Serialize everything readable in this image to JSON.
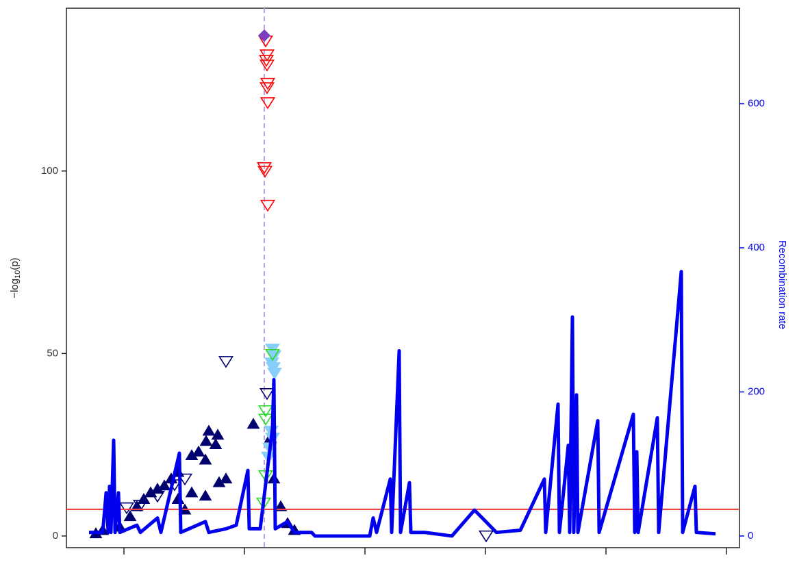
{
  "chart_data": {
    "type": "scatter",
    "y_label": {
      "text": "−log",
      "sub": "10",
      "suffix": "(p)"
    },
    "y2_label": "Recombination rate",
    "xlim": [
      97,
      1080
    ],
    "xticks": [
      181,
      357,
      533,
      709,
      885,
      1061
    ],
    "ylim": [
      -3.2,
      144.6
    ],
    "yticks": [
      0,
      50,
      100
    ],
    "y2lim": [
      -16.2,
      732.6
    ],
    "y2ticks": [
      0,
      200,
      400,
      600
    ],
    "threshold": {
      "value": 7.3,
      "color": "#f04040"
    },
    "lead_line": {
      "x": 386,
      "color": "#b8a2e0"
    },
    "groups": [
      {
        "color": "#00006e",
        "marker": "triangle-up",
        "filled": true,
        "x": [
          305,
          318,
          301,
          315,
          290,
          280,
          300,
          260,
          250,
          240,
          230,
          220,
          210,
          200,
          190,
          175,
          150,
          140,
          320,
          330,
          370,
          395,
          400,
          410,
          420,
          430,
          260,
          280,
          300,
          270
        ],
        "y": [
          28.7,
          27.6,
          25.9,
          25,
          23,
          22,
          20.8,
          17.4,
          15.6,
          13.7,
          12.8,
          11.8,
          10,
          8,
          5.3,
          2.4,
          1.5,
          0.6,
          14.6,
          15.6,
          30.6,
          26.8,
          15.6,
          8,
          3.4,
          1.5,
          10,
          11.8,
          10.9,
          7.1
        ]
      },
      {
        "color": "#00006e",
        "marker": "triangle-down",
        "filled": false,
        "x": [
          330,
          390,
          270,
          255,
          230,
          205,
          185,
          710
        ],
        "y": [
          47.8,
          39,
          15.6,
          14,
          10.9,
          8.4,
          7.7,
          0
        ]
      },
      {
        "color": "#87cefa",
        "marker": "triangle-down",
        "filled": true,
        "x": [
          398,
          400,
          397,
          399,
          401,
          396,
          398,
          394,
          392
        ],
        "y": [
          51.2,
          49.3,
          47.4,
          46.1,
          44.6,
          28.7,
          26.8,
          24,
          21.6
        ]
      },
      {
        "color": "#22dd22",
        "marker": "triangle-down",
        "filled": false,
        "x": [
          398,
          388,
          388,
          388,
          385
        ],
        "y": [
          49.7,
          34.3,
          32,
          16.5,
          9
        ]
      },
      {
        "color": "#ff0000",
        "marker": "triangle-down",
        "filled": false,
        "x": [
          388,
          390,
          389,
          390,
          391,
          390,
          391,
          386,
          387,
          391
        ],
        "y": [
          135.6,
          131.8,
          130.3,
          129,
          124,
          122.8,
          118.7,
          100.9,
          99.9,
          90.6
        ]
      },
      {
        "color": "#7b3fbf",
        "marker": "diamond",
        "filled": true,
        "x": [
          386
        ],
        "y": [
          137.1
        ]
      }
    ],
    "recombination": {
      "color": "#0000ee",
      "axis": "y2",
      "x": [
        130,
        150,
        155,
        158,
        160,
        162,
        166,
        168,
        173,
        175,
        200,
        205,
        230,
        235,
        262,
        264,
        300,
        305,
        330,
        345,
        362,
        364,
        380,
        398,
        400,
        402,
        420,
        430,
        455,
        460,
        540,
        545,
        550,
        570,
        572,
        583,
        585,
        598,
        600,
        620,
        660,
        693,
        725,
        760,
        795,
        797,
        815,
        817,
        830,
        832,
        836,
        838,
        842,
        844,
        873,
        875,
        925,
        927,
        930,
        932,
        960,
        962,
        995,
        997,
        1015,
        1017,
        1045
      ],
      "y": [
        5,
        5,
        60,
        5,
        69,
        5,
        133,
        5,
        60,
        5,
        15,
        5,
        25,
        5,
        115,
        5,
        20,
        5,
        10,
        15,
        91,
        10,
        10,
        150,
        217,
        10,
        20,
        5,
        5,
        0,
        0,
        25,
        5,
        79,
        5,
        257,
        5,
        74,
        5,
        5,
        0,
        36,
        5,
        8,
        79,
        5,
        183,
        5,
        126,
        5,
        304,
        5,
        196,
        5,
        160,
        5,
        169,
        5,
        117,
        5,
        164,
        5,
        367,
        5,
        69,
        5,
        3
      ]
    }
  }
}
